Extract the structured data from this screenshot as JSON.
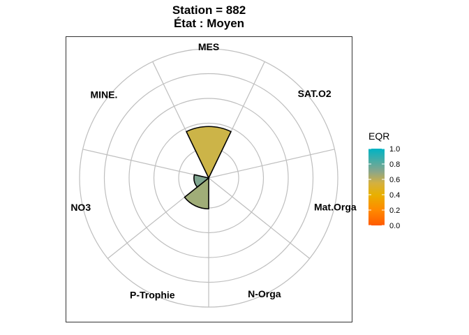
{
  "chart_data": {
    "type": "polar-bar",
    "title": "Station = 882",
    "subtitle": "État : Moyen",
    "categories": [
      "MES",
      "SAT.O2",
      "Mat.Orga",
      "N-Orga",
      "P-Trophie",
      "NO3",
      "MINE."
    ],
    "values": [
      0.7,
      0.0,
      0.0,
      0.0,
      0.42,
      0.2,
      0.0
    ],
    "colors": [
      "#ccb448",
      null,
      null,
      null,
      "#a0ad78",
      "#7fa58f",
      null
    ],
    "radial_max": 1.0,
    "radial_grid": [
      0.25,
      0.5,
      0.75,
      1.0
    ],
    "legend": {
      "title": "EQR",
      "ticks": [
        "1.0",
        "0.8",
        "0.6",
        "0.4",
        "0.2",
        "0.0"
      ],
      "tick_values": [
        1.0,
        0.8,
        0.6,
        0.4,
        0.2,
        0.0
      ],
      "gradient": [
        "#00b3c4",
        "#e8b000",
        "#ff5a00"
      ]
    },
    "grid": true
  }
}
